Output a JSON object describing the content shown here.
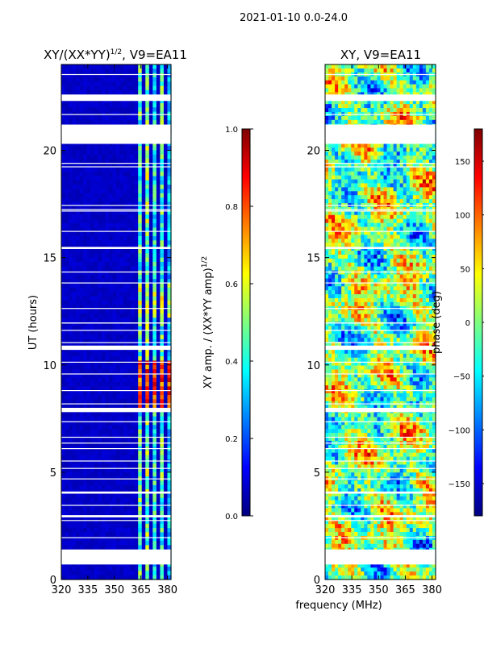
{
  "suptitle": "2021-01-10 0.0-24.0",
  "chart_data": [
    {
      "type": "heatmap",
      "title": "XY/(XX*YY)",
      "title_sup": "1/2",
      "title_suffix": ", V9=EA11",
      "xlabel": "",
      "ylabel": "UT (hours)",
      "xlim": [
        320,
        382
      ],
      "ylim": [
        0,
        24
      ],
      "xticks": [
        320,
        335,
        350,
        365,
        380
      ],
      "yticks": [
        0,
        5,
        10,
        15,
        20
      ],
      "bright_channels": [
        {
          "x": [
            363,
            366
          ],
          "value": 0.5
        },
        {
          "x": [
            367,
            370
          ],
          "value": 0.55
        },
        {
          "x": [
            371,
            373.5
          ],
          "value": 0.45
        },
        {
          "x": [
            375,
            378
          ],
          "value": 0.5
        },
        {
          "x": [
            379.5,
            381
          ],
          "value": 0.35
        }
      ],
      "high_band": {
        "y": [
          7.9,
          10.2
        ],
        "value": 0.85
      },
      "mid_band": {
        "y": [
          12.2,
          13.8
        ],
        "value": 0.6
      },
      "gaps": [
        [
          0.7,
          1.4
        ],
        [
          20.3,
          21.2
        ],
        [
          22.3,
          22.6
        ],
        [
          10.7,
          10.9
        ],
        [
          7.8,
          8.0
        ],
        [
          4.0,
          4.1
        ],
        [
          2.9,
          3.0
        ],
        [
          15.4,
          15.5
        ]
      ],
      "colorbar": {
        "label": "XY amp. / (XX*YY amp)",
        "label_sup": "1/2",
        "range": [
          0.0,
          1.0
        ],
        "ticks": [
          "0.0",
          "0.2",
          "0.4",
          "0.6",
          "0.8",
          "1.0"
        ],
        "colormap": "jet"
      }
    },
    {
      "type": "heatmap",
      "title": "XY, V9=EA11",
      "xlabel": "frequency (MHz)",
      "ylabel": "",
      "xlim": [
        320,
        382
      ],
      "ylim": [
        0,
        24
      ],
      "xticks": [
        320,
        335,
        350,
        365,
        380
      ],
      "yticks": [
        0,
        5,
        10,
        15,
        20
      ],
      "value_range": [
        -180,
        180
      ],
      "gaps": [
        [
          0.7,
          1.4
        ],
        [
          20.3,
          21.2
        ],
        [
          22.3,
          22.6
        ],
        [
          10.7,
          10.9
        ],
        [
          7.8,
          8.0
        ],
        [
          4.0,
          4.1
        ],
        [
          2.9,
          3.0
        ],
        [
          15.4,
          15.5
        ]
      ],
      "colorbar": {
        "label": "phase (deg)",
        "range": [
          -180,
          180
        ],
        "ticks": [
          "−150",
          "−100",
          "−50",
          "0",
          "50",
          "100",
          "150"
        ],
        "tick_values": [
          -150,
          -100,
          -50,
          0,
          50,
          100,
          150
        ],
        "colormap": "jet"
      }
    }
  ]
}
